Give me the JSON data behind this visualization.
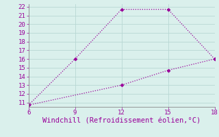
{
  "line1_x": [
    6,
    9,
    12,
    15,
    18
  ],
  "line1_y": [
    10.7,
    16.0,
    21.7,
    21.7,
    16.0
  ],
  "line2_x": [
    6,
    12,
    15,
    18
  ],
  "line2_y": [
    10.7,
    13.0,
    14.7,
    16.0
  ],
  "line_color": "#990099",
  "marker": "D",
  "marker_size": 2.5,
  "linewidth": 0.9,
  "linestyle": ":",
  "xlim": [
    6,
    18
  ],
  "ylim": [
    10.5,
    22.3
  ],
  "xticks": [
    6,
    9,
    12,
    15,
    18
  ],
  "yticks": [
    11,
    12,
    13,
    14,
    15,
    16,
    17,
    18,
    19,
    20,
    21,
    22
  ],
  "xlabel": "Windchill (Refroidissement éolien,°C)",
  "xlabel_color": "#990099",
  "xlabel_fontsize": 7.5,
  "tick_fontsize": 6.5,
  "background_color": "#daf0ec",
  "grid_color": "#b8d8d4",
  "spine_color": "#888888"
}
